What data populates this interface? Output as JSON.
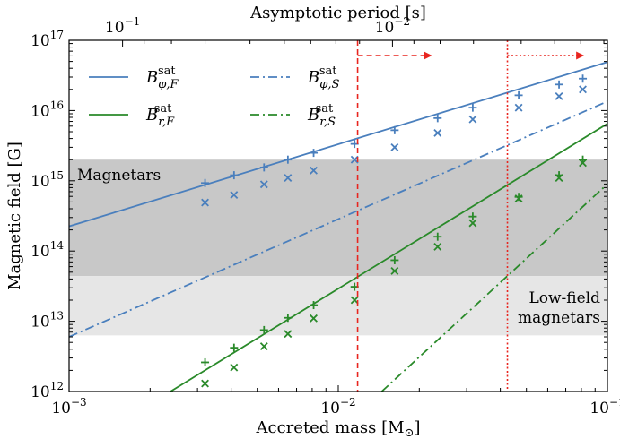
{
  "chart_data": {
    "type": "line",
    "xlabel_base": "Accreted mass [M",
    "xlabel_sun": "⊙",
    "xlabel_end": "]",
    "ylabel": "Magnetic field [G]",
    "top_xlabel": "Asymptotic period [s]",
    "x_scale": "log",
    "y_scale": "log",
    "xlim": [
      0.001,
      0.1
    ],
    "ylim": [
      1000000000000.0,
      1e+17
    ],
    "x_ticks": [
      {
        "value": 0.001,
        "base": "10",
        "exp": "−3"
      },
      {
        "value": 0.01,
        "base": "10",
        "exp": "−2"
      },
      {
        "value": 0.1,
        "base": "10",
        "exp": "−1"
      }
    ],
    "y_ticks": [
      {
        "value": 1000000000000.0,
        "base": "10",
        "exp": "12"
      },
      {
        "value": 10000000000000.0,
        "base": "10",
        "exp": "13"
      },
      {
        "value": 100000000000000.0,
        "base": "10",
        "exp": "14"
      },
      {
        "value": 1000000000000000.0,
        "base": "10",
        "exp": "15"
      },
      {
        "value": 1e+16,
        "base": "10",
        "exp": "16"
      },
      {
        "value": 1e+17,
        "base": "10",
        "exp": "17"
      }
    ],
    "top_ticks": [
      {
        "accreted_mass": 0.00158,
        "base": "10",
        "exp": "−1"
      },
      {
        "accreted_mass": 0.0159,
        "base": "10",
        "exp": "−2"
      }
    ],
    "bands": [
      {
        "name": "Magnetars",
        "ymin": 44000000000000.0,
        "ymax": 2000000000000000.0,
        "color": "#c8c8c8",
        "label_position": "left"
      },
      {
        "name": "Low-field magnetars",
        "ymin": 6300000000000.0,
        "ymax": 44000000000000.0,
        "color": "#e6e6e6",
        "label_position": "right",
        "label_lines": [
          "Low-field",
          "magnetars"
        ]
      }
    ],
    "vertical_lines": [
      {
        "x": 0.0118,
        "color": "#e8251f",
        "style": "dashed",
        "arrow_to_x": 0.0223
      },
      {
        "x": 0.0425,
        "color": "#e8251f",
        "style": "dotted",
        "arrow_to_x": 0.082
      }
    ],
    "series": [
      {
        "name": "B_φ,F",
        "sym": "B",
        "sub": "φ,F",
        "sup": "sat",
        "color": "#4a7fbd",
        "style": "solid",
        "x": [
          0.001,
          0.1
        ],
        "y": [
          225000000000000.0,
          4.9e+16
        ]
      },
      {
        "name": "B_φ,S",
        "sym": "B",
        "sub": "φ,S",
        "sup": "sat",
        "color": "#4a7fbd",
        "style": "dashdot",
        "x": [
          0.001,
          0.1
        ],
        "y": [
          6000000000000.0,
          1.35e+16
        ]
      },
      {
        "name": "B_r,F",
        "sym": "B",
        "sub": "r,F",
        "sup": "sat",
        "color": "#2a8a2a",
        "style": "solid",
        "x": [
          0.00238,
          0.1
        ],
        "y": [
          1000000000000.0,
          6500000000000000.0
        ]
      },
      {
        "name": "B_r,S",
        "sym": "B",
        "sub": "r,S",
        "sup": "sat",
        "color": "#2a8a2a",
        "style": "dashdot",
        "x": [
          0.0145,
          0.1
        ],
        "y": [
          1000000000000.0,
          900000000000000.0
        ]
      }
    ],
    "markers": [
      {
        "series": "B_φ,F",
        "marker": "+",
        "color": "#4a7fbd",
        "x": [
          0.0032,
          0.0041,
          0.0053,
          0.0065,
          0.0081,
          0.0115,
          0.0162,
          0.0234,
          0.0316,
          0.0468,
          0.0661,
          0.081
        ],
        "y": [
          930000000000000.0,
          1200000000000000.0,
          1550000000000000.0,
          2000000000000000.0,
          2500000000000000.0,
          3350000000000000.0,
          5250000000000000.0,
          7800000000000000.0,
          1.1e+16,
          1.65e+16,
          2.35e+16,
          2.85e+16
        ]
      },
      {
        "series": "B_φ,S",
        "marker": "x",
        "color": "#4a7fbd",
        "x": [
          0.0032,
          0.0041,
          0.0053,
          0.0065,
          0.0081,
          0.0115,
          0.0162,
          0.0234,
          0.0316,
          0.0468,
          0.0661,
          0.081
        ],
        "y": [
          490000000000000.0,
          630000000000000.0,
          890000000000000.0,
          1100000000000000.0,
          1400000000000000.0,
          2000000000000000.0,
          3000000000000000.0,
          4800000000000000.0,
          7500000000000000.0,
          1.1e+16,
          1.6e+16,
          2e+16
        ]
      },
      {
        "series": "B_r,F",
        "marker": "+",
        "color": "#2a8a2a",
        "x": [
          0.0032,
          0.0041,
          0.0053,
          0.0065,
          0.0081,
          0.0115,
          0.0162,
          0.0234,
          0.0316,
          0.0468,
          0.0661,
          0.081
        ],
        "y": [
          2600000000000.0,
          4200000000000.0,
          7500000000000.0,
          11200000000000.0,
          17000000000000.0,
          31000000000000.0,
          74000000000000.0,
          160000000000000.0,
          310000000000000.0,
          590000000000000.0,
          1200000000000000.0,
          2000000000000000.0
        ]
      },
      {
        "series": "B_r,S",
        "marker": "x",
        "color": "#2a8a2a",
        "x": [
          0.0032,
          0.0041,
          0.0053,
          0.0065,
          0.0081,
          0.0115,
          0.0162,
          0.0234,
          0.0316,
          0.0468,
          0.0661,
          0.081
        ],
        "y": [
          1300000000000.0,
          2200000000000.0,
          4400000000000.0,
          6600000000000.0,
          11000000000000.0,
          20000000000000.0,
          52000000000000.0,
          115000000000000.0,
          250000000000000.0,
          560000000000000.0,
          1100000000000000.0,
          1800000000000000.0
        ]
      }
    ],
    "legend": {
      "position": "top-left",
      "columns": 2,
      "order": [
        "B_φ,F",
        "B_φ,S",
        "B_r,F",
        "B_r,S"
      ]
    }
  }
}
